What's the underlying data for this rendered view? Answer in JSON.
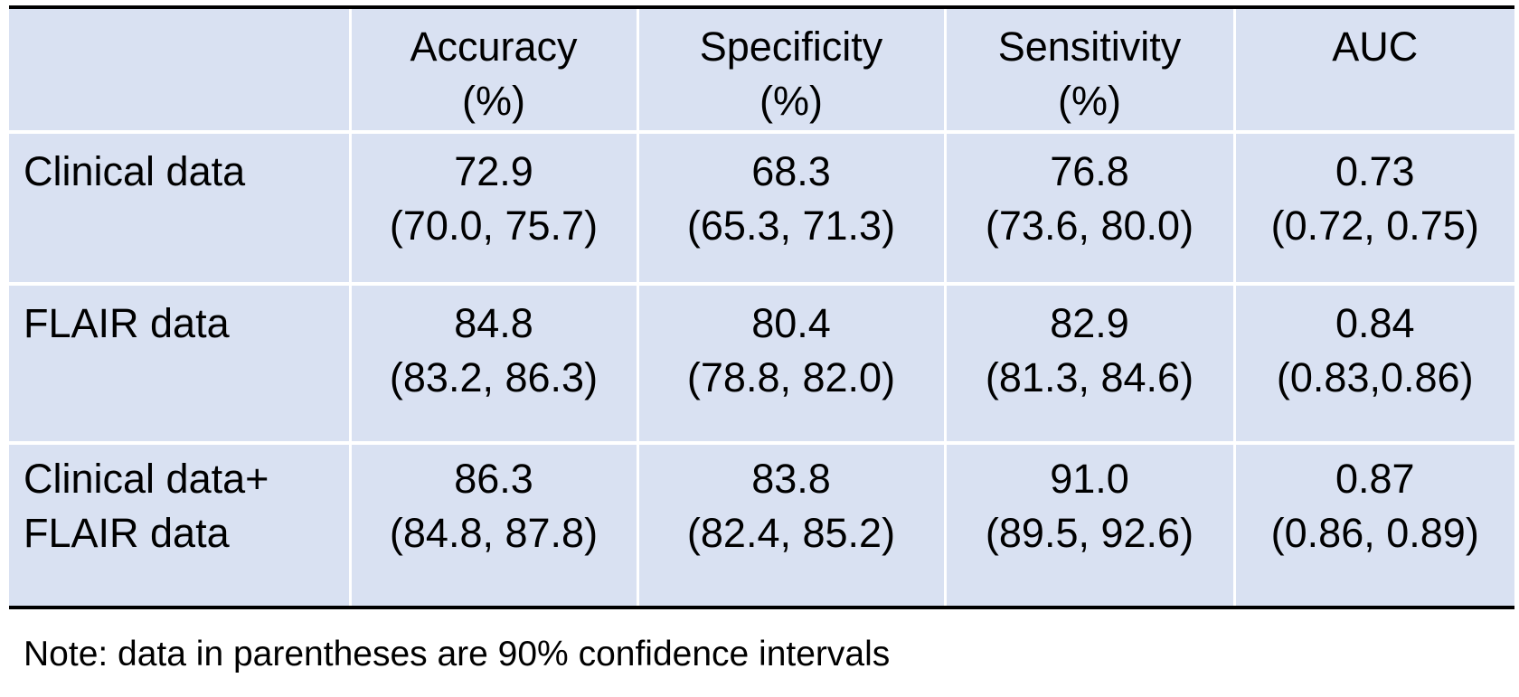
{
  "table": {
    "header": [
      {
        "line1": "",
        "line2": ""
      },
      {
        "line1": "Accuracy",
        "line2": "(%)"
      },
      {
        "line1": "Specificity",
        "line2": "(%)"
      },
      {
        "line1": "Sensitivity",
        "line2": "(%)"
      },
      {
        "line1": "AUC",
        "line2": ""
      }
    ],
    "rows": [
      {
        "label_line1": "Clinical data",
        "label_line2": "",
        "cells": [
          {
            "value": "72.9",
            "ci": "(70.0, 75.7)"
          },
          {
            "value": "68.3",
            "ci": "(65.3, 71.3)"
          },
          {
            "value": "76.8",
            "ci": "(73.6, 80.0)"
          },
          {
            "value": "0.73",
            "ci": "(0.72, 0.75)"
          }
        ]
      },
      {
        "label_line1": "FLAIR data",
        "label_line2": "",
        "cells": [
          {
            "value": "84.8",
            "ci": "(83.2, 86.3)"
          },
          {
            "value": "80.4",
            "ci": "(78.8, 82.0)"
          },
          {
            "value": "82.9",
            "ci": "(81.3, 84.6)"
          },
          {
            "value": "0.84",
            "ci": "(0.83,0.86)"
          }
        ]
      },
      {
        "label_line1": "Clinical data+",
        "label_line2": "FLAIR data",
        "cells": [
          {
            "value": "86.3",
            "ci": "(84.8, 87.8)"
          },
          {
            "value": "83.8",
            "ci": "(82.4, 85.2)"
          },
          {
            "value": "91.0",
            "ci": "(89.5, 92.6)"
          },
          {
            "value": "0.87",
            "ci": "(0.86, 0.89)"
          }
        ]
      }
    ]
  },
  "note": "Note: data in parentheses are 90% confidence intervals",
  "colors": {
    "cell_fill": "#d9e1f2",
    "grid_lines": "#ffffff",
    "rules": "#000000"
  }
}
